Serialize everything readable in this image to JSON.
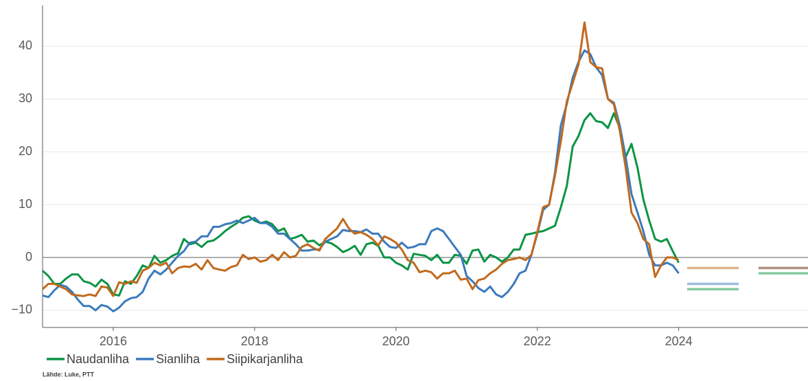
{
  "chart_data": {
    "type": "line",
    "source": "Lähde: Luke, PTT",
    "x": [
      2015,
      2015.083,
      2015.167,
      2015.25,
      2015.333,
      2015.417,
      2015.5,
      2015.583,
      2015.667,
      2015.75,
      2015.833,
      2015.917,
      2016,
      2016.083,
      2016.167,
      2016.25,
      2016.333,
      2016.417,
      2016.5,
      2016.583,
      2016.667,
      2016.75,
      2016.833,
      2016.917,
      2017,
      2017.083,
      2017.167,
      2017.25,
      2017.333,
      2017.417,
      2017.5,
      2017.583,
      2017.667,
      2017.75,
      2017.833,
      2017.917,
      2018,
      2018.083,
      2018.167,
      2018.25,
      2018.333,
      2018.417,
      2018.5,
      2018.583,
      2018.667,
      2018.75,
      2018.833,
      2018.917,
      2019,
      2019.083,
      2019.167,
      2019.25,
      2019.333,
      2019.417,
      2019.5,
      2019.583,
      2019.667,
      2019.75,
      2019.833,
      2019.917,
      2020,
      2020.083,
      2020.167,
      2020.25,
      2020.333,
      2020.417,
      2020.5,
      2020.583,
      2020.667,
      2020.75,
      2020.833,
      2020.917,
      2021,
      2021.083,
      2021.167,
      2021.25,
      2021.333,
      2021.417,
      2021.5,
      2021.583,
      2021.667,
      2021.75,
      2021.833,
      2021.917,
      2022,
      2022.083,
      2022.167,
      2022.25,
      2022.333,
      2022.417,
      2022.5,
      2022.583,
      2022.667,
      2022.75,
      2022.833,
      2022.917,
      2023,
      2023.083,
      2023.167,
      2023.25,
      2023.333,
      2023.417,
      2023.5,
      2023.583,
      2023.667,
      2023.75,
      2023.833,
      2023.917,
      2024
    ],
    "series": [
      {
        "name": "Naudanliha",
        "color": "#0a9444",
        "forecast": [
          -6,
          -3
        ],
        "values": [
          -2.5,
          -3.5,
          -5,
          -5,
          -4,
          -3.2,
          -3.2,
          -4.5,
          -4.8,
          -5.5,
          -4.2,
          -5,
          -7,
          -7.2,
          -4.5,
          -5,
          -3.5,
          -1.5,
          -2,
          0.3,
          -1,
          -0.5,
          0.3,
          0.8,
          3.5,
          2.5,
          2.8,
          2,
          3,
          3.2,
          4,
          5,
          5.8,
          6.5,
          7.5,
          7.8,
          7,
          6.5,
          6.8,
          6.3,
          5,
          5.5,
          3.5,
          3.8,
          4.3,
          3,
          3.2,
          2.3,
          3,
          2.7,
          2,
          1,
          1.5,
          2.2,
          0.5,
          2.5,
          2.8,
          2.2,
          0,
          0,
          -1,
          -1.5,
          -2.3,
          0.7,
          0.5,
          0.3,
          -0.5,
          0.5,
          -1,
          -1,
          0.5,
          0.3,
          -1.2,
          1.3,
          1.5,
          -0.8,
          0.5,
          0,
          -0.8,
          0,
          1.5,
          1.5,
          4.3,
          4.5,
          4.8,
          5,
          5.5,
          6,
          9.5,
          13.5,
          21,
          23,
          26,
          27.3,
          25.8,
          25.6,
          24.5,
          27.3,
          24.5,
          19,
          21.5,
          17,
          11,
          7,
          3.5,
          3,
          3.5,
          1.2,
          -1
        ]
      },
      {
        "name": "Sianliha",
        "color": "#3a7abd",
        "forecast": [
          -5,
          -2
        ],
        "values": [
          -7.2,
          -7.5,
          -6.2,
          -5.2,
          -5.5,
          -6.5,
          -8,
          -9.2,
          -9.2,
          -10,
          -9,
          -9.3,
          -10.2,
          -9.5,
          -8.3,
          -7.7,
          -7.5,
          -6.5,
          -4,
          -2.5,
          -3.2,
          -2.3,
          -1,
          0.3,
          1.2,
          2.8,
          3,
          4,
          4,
          5.8,
          5.8,
          6.3,
          6.5,
          7,
          6.5,
          7,
          7.5,
          6.5,
          6.5,
          5.8,
          4.5,
          4.5,
          3.5,
          2.5,
          1.3,
          1.3,
          1.5,
          1.5,
          3,
          3.5,
          4,
          5.2,
          5,
          5,
          4.8,
          5.3,
          4.5,
          4.5,
          3,
          2,
          1.8,
          2.8,
          1.8,
          2,
          2.5,
          2.5,
          5,
          5.5,
          5,
          3.5,
          2,
          0.5,
          -3.5,
          -4.5,
          -5.8,
          -6.5,
          -5.5,
          -7,
          -7.5,
          -6.5,
          -5,
          -3,
          -2.5,
          0.5,
          4.5,
          9,
          10,
          16,
          25,
          29,
          34,
          37,
          39.2,
          38.5,
          36,
          34.5,
          30,
          29.3,
          25,
          19,
          12,
          8.5,
          5,
          0.5,
          -1.5,
          -1.5,
          -1,
          -1.5,
          -3
        ]
      },
      {
        "name": "Siipikarjanliha",
        "color": "#c0691d",
        "forecast": [
          -2,
          -2
        ],
        "values": [
          -6,
          -5,
          -5,
          -5.5,
          -6,
          -7,
          -7.2,
          -7.3,
          -7,
          -7.3,
          -5.5,
          -5.7,
          -7.3,
          -4.7,
          -5,
          -4.5,
          -4.8,
          -2.5,
          -2,
          -1,
          -1.5,
          -1,
          -3,
          -2,
          -1.7,
          -1.8,
          -1.2,
          -2.3,
          -0.5,
          -2,
          -2.3,
          -2.5,
          -1.8,
          -1.5,
          0.5,
          -0.3,
          0,
          -0.8,
          -0.5,
          0.5,
          -0.5,
          1,
          0,
          0.3,
          2,
          2.5,
          1.8,
          1.3,
          3.5,
          4.5,
          5.5,
          7.3,
          5.5,
          4.5,
          4.8,
          4.3,
          3.5,
          2.3,
          4,
          3.5,
          2.8,
          1.5,
          -0.5,
          -1,
          -2.8,
          -2.5,
          -2.8,
          -4,
          -3,
          -3,
          -2.5,
          -4.2,
          -4,
          -6,
          -4.3,
          -4,
          -3,
          -2.3,
          -1.2,
          -0.5,
          -0.3,
          0,
          -0.5,
          0.5,
          4.8,
          9.5,
          10,
          15.5,
          22,
          29.5,
          33,
          36.5,
          44.5,
          37,
          36,
          35.8,
          30,
          29,
          24,
          17,
          8.5,
          6.5,
          3.5,
          2.5,
          -3.7,
          -1.5,
          0,
          0,
          -0.5
        ]
      }
    ],
    "forecast_periods": [
      [
        2024.12,
        2024.85
      ],
      [
        2025.13,
        2025.83
      ]
    ],
    "xlim": [
      2015,
      2025.83
    ],
    "xticks": [
      2016,
      2018,
      2020,
      2022,
      2024
    ],
    "ylim": [
      -13.25,
      47.7
    ],
    "yticks": [
      {
        "value": -10,
        "label": "−10"
      },
      0,
      10,
      20,
      30,
      40
    ],
    "grid": true,
    "legend": "bottom"
  }
}
